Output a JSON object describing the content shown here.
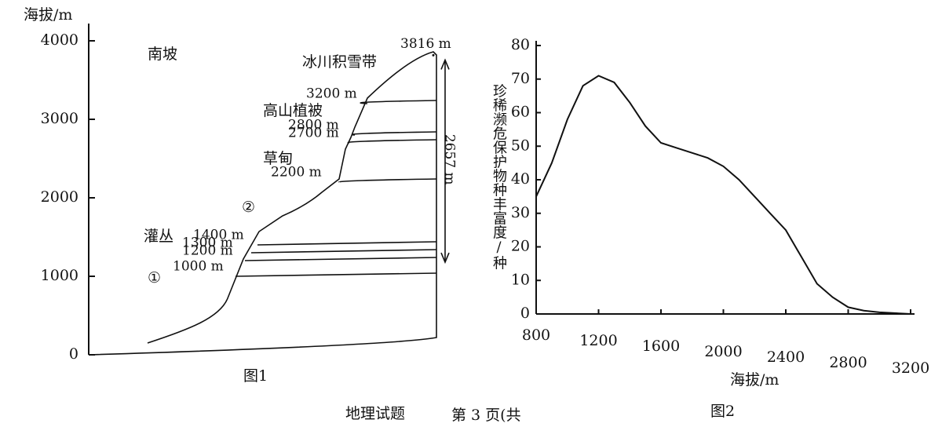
{
  "chart_data": [
    {
      "type": "profile",
      "y_label": "海拔/m",
      "slope_label": "南坡",
      "caption": "图1",
      "ylim": [
        0,
        4000
      ],
      "yticks": [
        0,
        1000,
        2000,
        3000,
        4000
      ],
      "boundaries": [
        {
          "value": 1000,
          "label": "1000 m"
        },
        {
          "value": 1200,
          "label": "1200 m"
        },
        {
          "value": 1300,
          "label": "1300 m"
        },
        {
          "value": 1400,
          "label": "1400 m"
        },
        {
          "value": 2200,
          "label": "2200 m"
        },
        {
          "value": 2700,
          "label": "2700 m"
        },
        {
          "value": 2800,
          "label": "2800 m"
        },
        {
          "value": 3200,
          "label": "3200 m"
        }
      ],
      "peak": {
        "value": 3816,
        "label": "3816 m"
      },
      "range": {
        "value": 2657,
        "label": "2657 m"
      },
      "zones": [
        "灌丛",
        "草甸",
        "高山植被",
        "冰川积雪带"
      ],
      "markers": [
        "①",
        "②"
      ]
    },
    {
      "type": "line",
      "x_label": "海拔/m",
      "y_label": "珍稀濒危保护物种丰富度/种",
      "caption": "图2",
      "xlim": [
        800,
        3200
      ],
      "xticks": [
        800,
        1200,
        1600,
        2000,
        2400,
        2800,
        3200
      ],
      "ylim": [
        0,
        80
      ],
      "yticks": [
        0,
        10,
        20,
        30,
        40,
        50,
        60,
        70,
        80
      ],
      "x": [
        800,
        900,
        1000,
        1100,
        1200,
        1300,
        1400,
        1500,
        1600,
        1700,
        1800,
        1900,
        2000,
        2100,
        2200,
        2300,
        2400,
        2500,
        2600,
        2700,
        2800,
        2900,
        3000,
        3200
      ],
      "values": [
        35,
        45,
        58,
        68,
        71,
        69,
        63,
        56,
        51,
        49.5,
        48,
        46.5,
        44,
        40,
        35,
        30,
        25,
        17,
        9,
        5,
        2,
        1,
        0.5,
        0
      ],
      "color": "#111"
    }
  ],
  "footer": {
    "subject": "地理试题",
    "page": "第 3 页(共"
  }
}
